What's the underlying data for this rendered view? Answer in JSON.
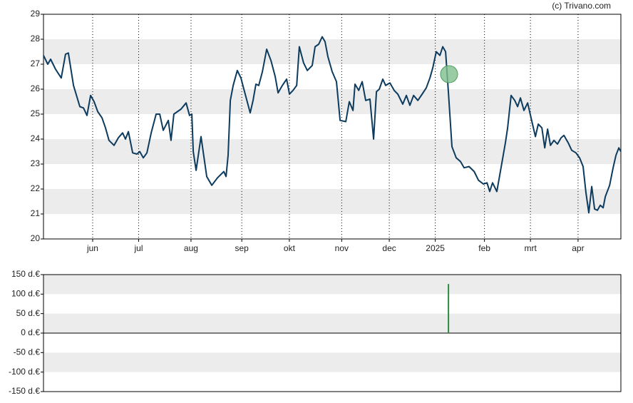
{
  "credit": "(c) Trivano.com",
  "chart_data": [
    {
      "type": "line",
      "x": [
        0,
        2.7,
        4.5,
        7.6,
        11.2,
        13.9,
        15.7,
        18.9,
        22.9,
        25.2,
        27.4,
        29.7,
        31.9,
        34.2,
        36.9,
        39.1,
        41.3,
        44.5,
        47.2,
        49.9,
        51.7,
        53.5,
        56.2,
        58.9,
        60.7,
        62.9,
        65.2,
        67.9,
        71.0,
        73.3,
        75.5,
        78.7,
        80.4,
        82.2,
        86.7,
        89.9,
        92.1,
        93.5,
        94.4,
        96.2,
        99.3,
        102.9,
        106.1,
        109.7,
        113.7,
        115.1,
        116.4,
        117.8,
        119.6,
        122.2,
        124.5,
        126.3,
        130.3,
        132.1,
        133.9,
        135.7,
        138.0,
        140.7,
        143.4,
        146.1,
        147.9,
        150.6,
        153.3,
        155.1,
        157.3,
        159.6,
        161.3,
        164.0,
        166.3,
        169.4,
        171.2,
        173.5,
        175.7,
        177.5,
        179.3,
        182.0,
        184.7,
        187.0,
        190.6,
        192.8,
        195.1,
        196.4,
        198.7,
        200.9,
        203.1,
        205.8,
        208.1,
        209.9,
        211.7,
        213.9,
        215.7,
        218.4,
        221.1,
        223.4,
        226.5,
        228.8,
        231.0,
        233.3,
        236.0,
        238.7,
        241.3,
        243.6,
        245.4,
        247.6,
        249.9,
        251.7,
        253.5,
        255.3,
        257.5,
        260.2,
        262.9,
        265.2,
        268.3,
        271.5,
        274.2,
        277.3,
        279.6,
        281.3,
        283.1,
        285.8,
        289.0,
        291.2,
        292.6,
        294.8,
        297.1,
        298.9,
        300.7,
        302.9,
        305.2,
        307.9,
        310.1,
        311.9,
        314.2,
        316.0,
        317.8,
        319.6,
        321.8,
        324.0,
        326.3,
        328.1,
        330.8,
        333.0,
        335.7,
        338.0,
        340.2,
        342.0,
        343.8,
        345.6,
        347.4,
        349.2,
        351.0,
        352.8,
        354.2,
        356.9,
        359.1,
        360.9,
        362.7,
        364.0
      ],
      "series": [
        {
          "color": "#0d3b5e",
          "values": [
            27.35,
            27.0,
            27.2,
            26.8,
            26.45,
            27.4,
            27.45,
            26.15,
            25.3,
            25.25,
            24.95,
            25.75,
            25.5,
            25.1,
            24.85,
            24.45,
            23.95,
            23.75,
            24.05,
            24.25,
            24.0,
            24.3,
            23.45,
            23.4,
            23.5,
            23.25,
            23.45,
            24.25,
            25.0,
            25.0,
            24.35,
            24.75,
            23.95,
            25.0,
            25.2,
            25.45,
            24.95,
            25.0,
            23.5,
            22.75,
            24.1,
            22.5,
            22.15,
            22.45,
            22.7,
            22.5,
            23.35,
            25.55,
            26.15,
            26.75,
            26.45,
            26.0,
            25.05,
            25.55,
            26.2,
            26.15,
            26.7,
            27.6,
            27.15,
            26.5,
            25.85,
            26.15,
            26.4,
            25.8,
            25.95,
            26.15,
            27.7,
            27.05,
            26.75,
            26.95,
            27.7,
            27.8,
            28.1,
            27.9,
            27.3,
            26.7,
            26.3,
            24.75,
            24.7,
            25.5,
            25.15,
            26.2,
            25.95,
            26.3,
            25.55,
            25.6,
            24.0,
            25.9,
            26.0,
            26.4,
            26.15,
            26.25,
            25.95,
            25.8,
            25.4,
            25.75,
            25.35,
            25.75,
            25.55,
            25.8,
            26.05,
            26.45,
            26.85,
            27.5,
            27.35,
            27.7,
            27.5,
            25.85,
            23.7,
            23.25,
            23.1,
            22.85,
            22.9,
            22.7,
            22.35,
            22.2,
            22.25,
            21.9,
            22.25,
            21.9,
            23.05,
            23.85,
            24.45,
            25.75,
            25.55,
            25.3,
            25.65,
            25.15,
            25.45,
            24.7,
            24.1,
            24.6,
            24.45,
            23.65,
            24.4,
            23.75,
            23.95,
            23.8,
            24.05,
            24.15,
            23.85,
            23.55,
            23.45,
            23.25,
            22.9,
            21.85,
            21.05,
            22.1,
            21.2,
            21.15,
            21.35,
            21.25,
            21.7,
            22.15,
            22.85,
            23.35,
            23.65,
            23.5
          ]
        }
      ],
      "marker": {
        "x": 255.7,
        "y": 26.6,
        "color": "#7fbf8f"
      },
      "xlim": [
        0,
        364
      ],
      "xticks": [
        {
          "value": 31,
          "label": "jun"
        },
        {
          "value": 60,
          "label": "jul"
        },
        {
          "value": 93,
          "label": "aug"
        },
        {
          "value": 125,
          "label": "sep"
        },
        {
          "value": 155,
          "label": "okt"
        },
        {
          "value": 188,
          "label": "nov"
        },
        {
          "value": 218,
          "label": "dec"
        },
        {
          "value": 247,
          "label": "2025"
        },
        {
          "value": 278,
          "label": "feb"
        },
        {
          "value": 307,
          "label": "mrt"
        },
        {
          "value": 337,
          "label": "apr"
        }
      ],
      "ylim": [
        20,
        29
      ],
      "yticks": [
        20,
        21,
        22,
        23,
        24,
        25,
        26,
        27,
        28,
        29
      ],
      "bands": true,
      "grid_x": true
    },
    {
      "type": "bar",
      "x": [
        255.3
      ],
      "values": [
        126
      ],
      "color": "#2e8b3e",
      "xlim": [
        0,
        364
      ],
      "ylim": [
        -150,
        150
      ],
      "yticks": [
        {
          "value": -150,
          "label": "-150 d.€"
        },
        {
          "value": -100,
          "label": "-100 d.€"
        },
        {
          "value": -50,
          "label": "-50 d.€"
        },
        {
          "value": 0,
          "label": "0 d.€"
        },
        {
          "value": 50,
          "label": "50 d.€"
        },
        {
          "value": 100,
          "label": "100 d.€"
        },
        {
          "value": 150,
          "label": "150 d.€"
        }
      ],
      "bands": true,
      "zero_line": true
    }
  ]
}
